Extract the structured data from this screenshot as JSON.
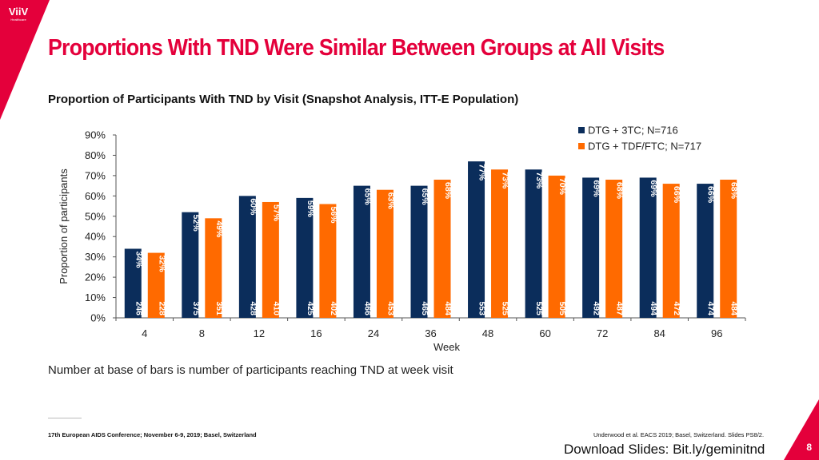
{
  "brand": {
    "line1": "ViiV",
    "line2": "Healthcare",
    "accent": "#e4003b"
  },
  "slide": {
    "title": "Proportions With TND Were Similar Between Groups at All Visits",
    "subtitle": "Proportion of Participants With TND by Visit (Snapshot Analysis, ITT-E Population)",
    "note": "Number at base of bars is number of participants reaching TND at week visit",
    "footer_left": "17th European AIDS Conference; November 6-9, 2019; Basel, Switzerland",
    "footer_right": "Underwood et al. EACS 2019; Basel, Switzerland. Slides PS8/2.",
    "download": "Download Slides: Bit.ly/geminitnd",
    "page_number": "8"
  },
  "chart_data": {
    "type": "bar",
    "categories": [
      "4",
      "8",
      "12",
      "16",
      "24",
      "36",
      "48",
      "60",
      "72",
      "84",
      "96"
    ],
    "xlabel": "Week",
    "ylabel": "Proportion of participants",
    "ylim": [
      0,
      90
    ],
    "yticks": [
      "0%",
      "10%",
      "20%",
      "30%",
      "40%",
      "50%",
      "60%",
      "70%",
      "80%",
      "90%"
    ],
    "legend_position": "top-right",
    "series": [
      {
        "name": "DTG + 3TC; N=716",
        "color": "#0b2d5b",
        "values": [
          34,
          52,
          60,
          59,
          65,
          65,
          77,
          73,
          69,
          69,
          66
        ],
        "labels": [
          "34%",
          "52%",
          "60%",
          "59%",
          "65%",
          "65%",
          "77%",
          "73%",
          "69%",
          "69%",
          "66%"
        ],
        "counts": [
          "246",
          "375",
          "428",
          "425",
          "466",
          "465",
          "553",
          "525",
          "492",
          "494",
          "474"
        ]
      },
      {
        "name": "DTG + TDF/FTC; N=717",
        "color": "#ff6a00",
        "values": [
          32,
          49,
          57,
          56,
          63,
          68,
          73,
          70,
          68,
          66,
          68
        ],
        "labels": [
          "32%",
          "49%",
          "57%",
          "56%",
          "63%",
          "68%",
          "73%",
          "70%",
          "68%",
          "66%",
          "68%"
        ],
        "counts": [
          "228",
          "351",
          "410",
          "402",
          "453",
          "484",
          "525",
          "505",
          "487",
          "472",
          "484"
        ]
      }
    ]
  }
}
